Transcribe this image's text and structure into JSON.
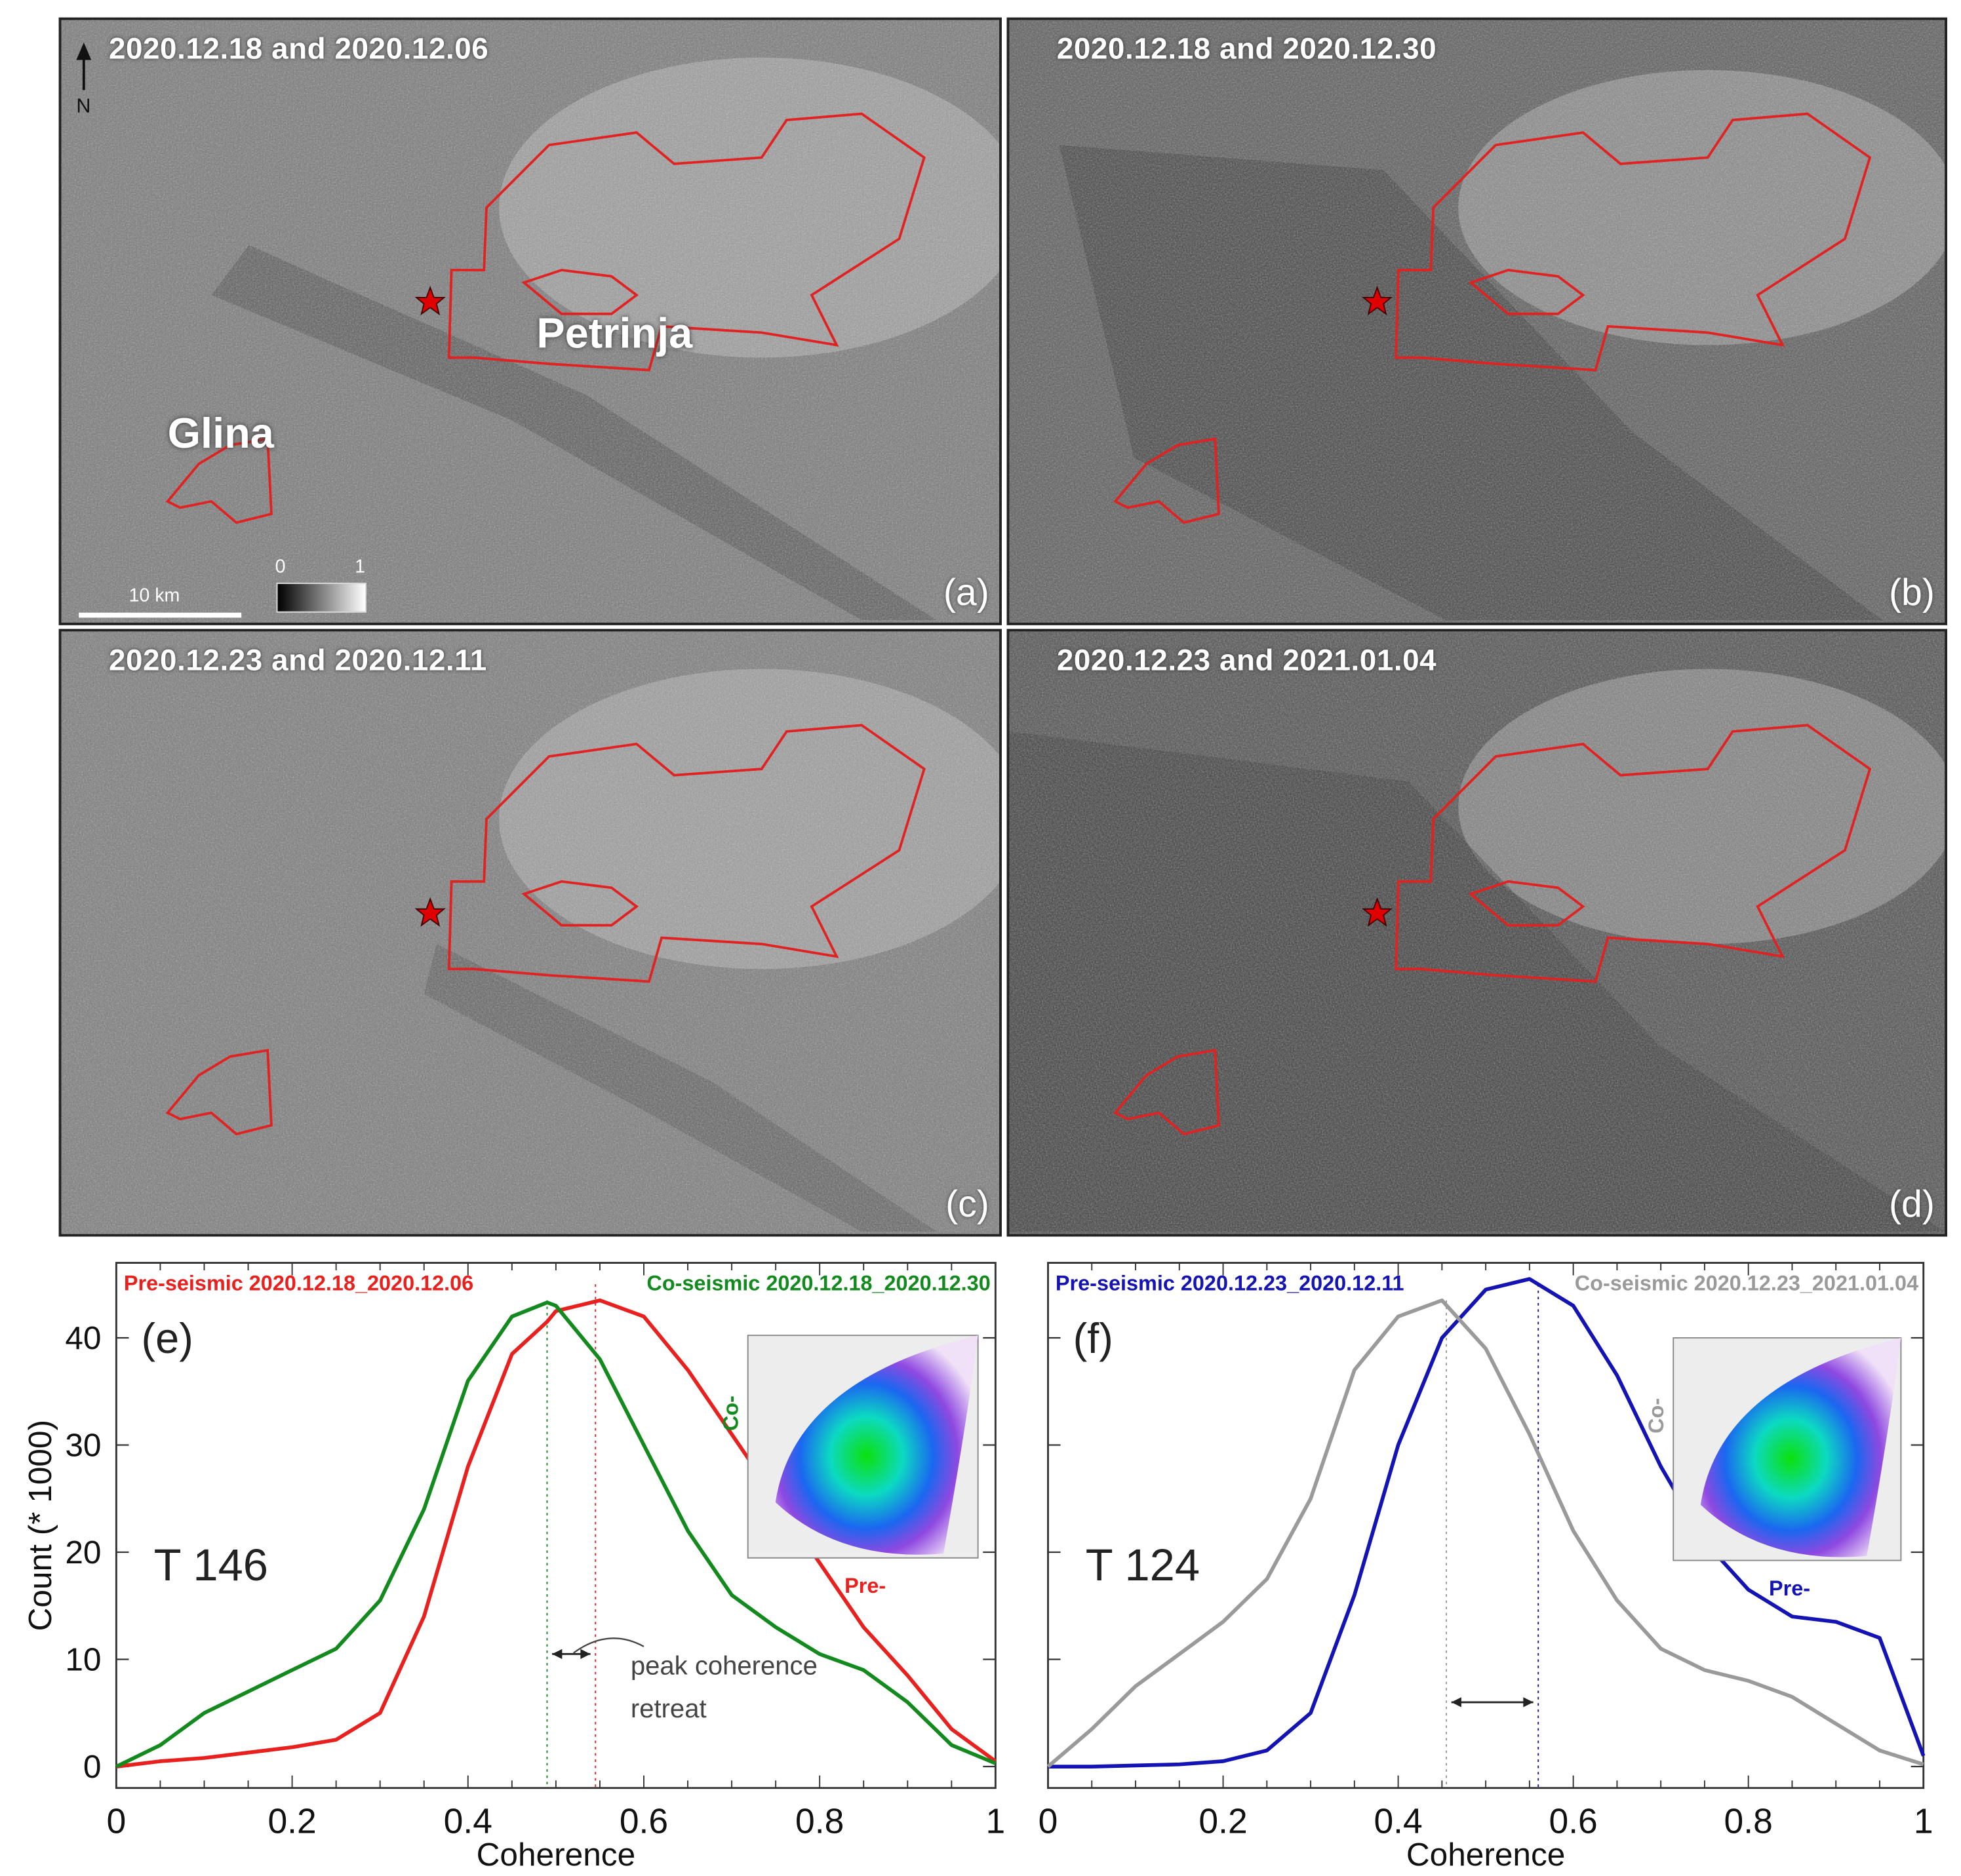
{
  "figure": {
    "panels": [
      {
        "id": "a",
        "letter": "(a)",
        "title": "2020.12.18 and 2020.12.06",
        "labels": [
          "Petrinja",
          "Glina"
        ],
        "north_label": "N",
        "scale_label": "10 km",
        "colorbar_min": "0",
        "colorbar_max": "1"
      },
      {
        "id": "b",
        "letter": "(b)",
        "title": "2020.12.18 and 2020.12.30"
      },
      {
        "id": "c",
        "letter": "(c)",
        "title": "2020.12.23 and 2020.12.11"
      },
      {
        "id": "d",
        "letter": "(d)",
        "title": "2020.12.23 and 2021.01.04"
      }
    ],
    "colors": {
      "pre_e": "#e8211f",
      "co_e": "#138a1e",
      "pre_f": "#1414b4",
      "co_f": "#9a9a9a",
      "outline": "#e02222",
      "epicenter": "#e00000"
    }
  },
  "chart_data": [
    {
      "type": "line",
      "panel": "(e)",
      "track_label": "T 146",
      "xlabel": "Coherence",
      "ylabel": "Count (* 1000)",
      "xlim": [
        0,
        1
      ],
      "ylim": [
        -2,
        47
      ],
      "xticks": [
        "0",
        "0.2",
        "0.4",
        "0.6",
        "0.8",
        "1"
      ],
      "yticks": [
        "0",
        "10",
        "20",
        "30",
        "40"
      ],
      "legend": [
        "Pre-seismic 2020.12.18_2020.12.06",
        "Co-seismic 2020.12.18_2020.12.30"
      ],
      "annotation": "peak coherence retreat",
      "peak_lines": {
        "pre": 0.545,
        "co": 0.49
      },
      "inset": {
        "type": "scatter-density",
        "xlabel": "Pre-",
        "ylabel": "Co-"
      },
      "x": [
        0,
        0.05,
        0.1,
        0.15,
        0.2,
        0.25,
        0.3,
        0.35,
        0.4,
        0.45,
        0.49,
        0.5,
        0.55,
        0.6,
        0.65,
        0.7,
        0.75,
        0.8,
        0.85,
        0.9,
        0.95,
        1.0
      ],
      "series": [
        {
          "name": "Pre-seismic 2020.12.18_2020.12.06",
          "values": [
            0,
            0.5,
            0.8,
            1.3,
            1.8,
            2.5,
            5.0,
            14.0,
            28.0,
            38.5,
            41.5,
            42.5,
            43.5,
            42.0,
            37.0,
            31.0,
            25.0,
            19.0,
            13.0,
            8.5,
            3.5,
            0.5
          ]
        },
        {
          "name": "Co-seismic 2020.12.18_2020.12.30",
          "values": [
            0,
            2.0,
            5.0,
            7.0,
            9.0,
            11.0,
            15.5,
            24.0,
            36.0,
            42.0,
            43.3,
            43.0,
            38.0,
            30.0,
            22.0,
            16.0,
            13.0,
            10.5,
            9.0,
            6.0,
            2.0,
            0.3
          ]
        }
      ]
    },
    {
      "type": "line",
      "panel": "(f)",
      "track_label": "T 124",
      "xlabel": "Coherence",
      "ylabel": "",
      "xlim": [
        0,
        1
      ],
      "ylim": [
        -2,
        47
      ],
      "xticks": [
        "0",
        "0.2",
        "0.4",
        "0.6",
        "0.8",
        "1"
      ],
      "yticks": [],
      "legend": [
        "Pre-seismic 2020.12.23_2020.12.11",
        "Co-seismic 2020.12.23_2021.01.04"
      ],
      "peak_lines": {
        "pre": 0.56,
        "co": 0.455
      },
      "inset": {
        "type": "scatter-density",
        "xlabel": "Pre-",
        "ylabel": "Co-"
      },
      "x": [
        0,
        0.05,
        0.1,
        0.15,
        0.2,
        0.25,
        0.3,
        0.35,
        0.4,
        0.45,
        0.5,
        0.55,
        0.6,
        0.65,
        0.7,
        0.75,
        0.8,
        0.85,
        0.9,
        0.95,
        1.0
      ],
      "series": [
        {
          "name": "Pre-seismic 2020.12.23_2020.12.11",
          "values": [
            0,
            0,
            0.1,
            0.2,
            0.5,
            1.5,
            5.0,
            16.0,
            30.0,
            40.0,
            44.5,
            45.5,
            43.0,
            36.5,
            28.0,
            21.0,
            16.5,
            14.0,
            13.5,
            12.0,
            1.0
          ]
        },
        {
          "name": "Co-seismic 2020.12.23_2021.01.04",
          "values": [
            0,
            3.5,
            7.5,
            10.5,
            13.5,
            17.5,
            25.0,
            37.0,
            42.0,
            43.5,
            39.0,
            31.0,
            22.0,
            15.5,
            11.0,
            9.0,
            8.0,
            6.5,
            4.0,
            1.5,
            0.2
          ]
        }
      ]
    }
  ]
}
